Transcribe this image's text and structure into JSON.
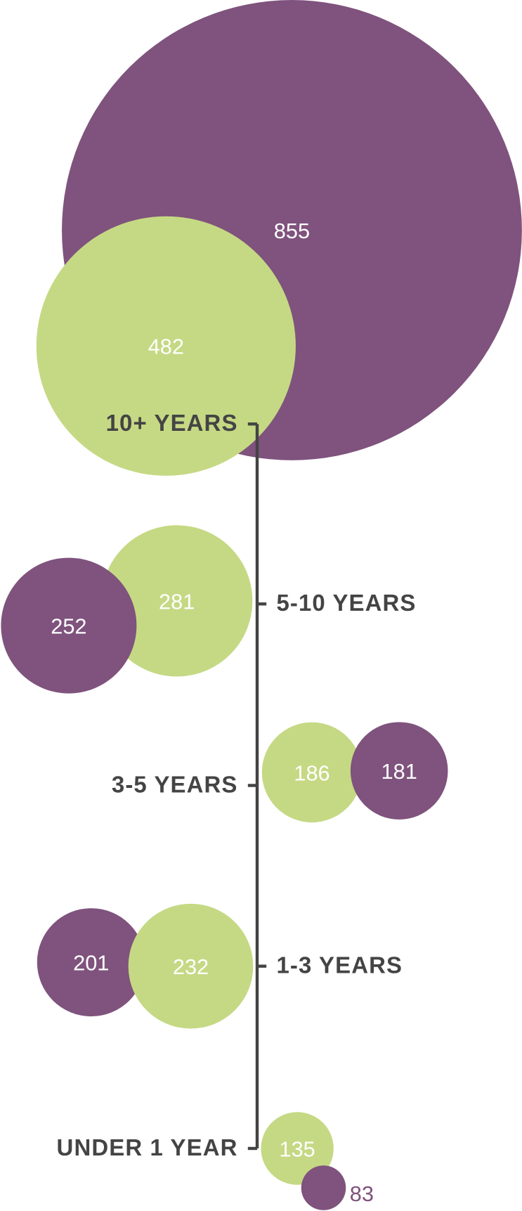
{
  "chart_data": {
    "type": "bubble",
    "categories": [
      "10+ YEARS",
      "5-10 YEARS",
      "3-5 YEARS",
      "1-3 YEARS",
      "UNDER 1 YEAR"
    ],
    "series": [
      {
        "color": "#7f537d",
        "values": [
          855,
          252,
          181,
          201,
          83
        ]
      },
      {
        "color": "#c5d984",
        "values": [
          482,
          281,
          186,
          232,
          135
        ]
      }
    ]
  }
}
